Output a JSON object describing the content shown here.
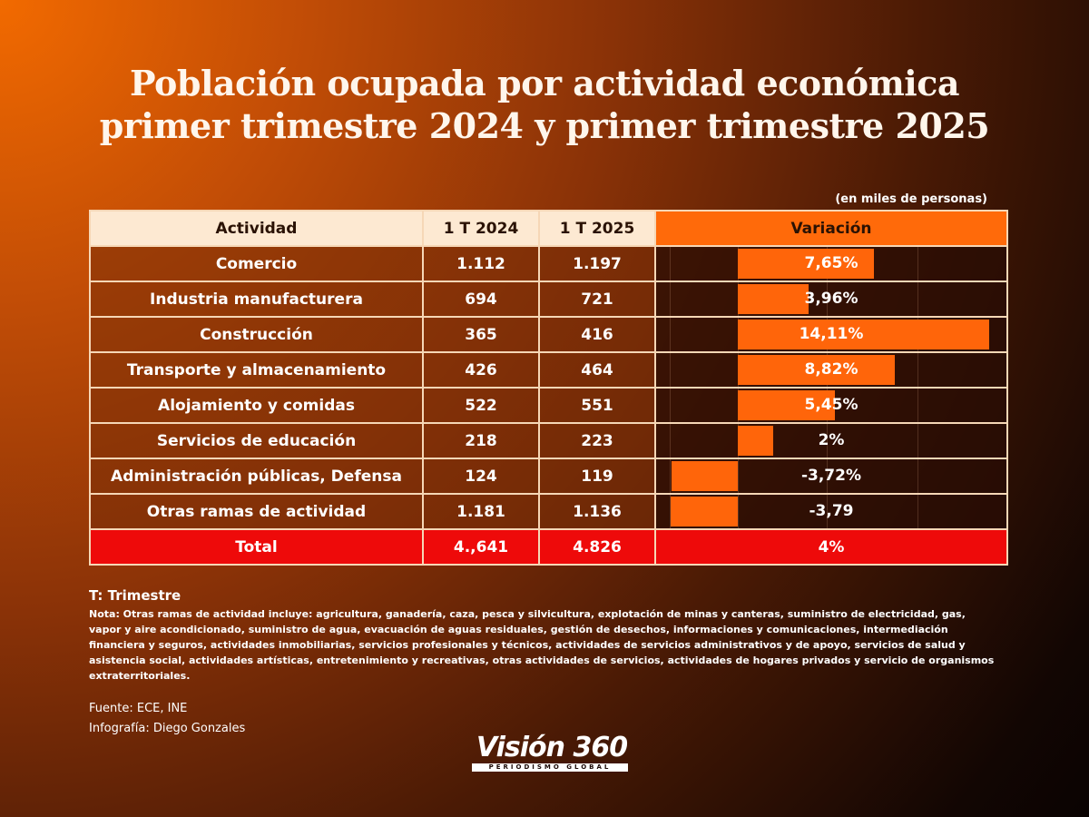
{
  "title_line1": "Población ocupada  por actividad económica",
  "title_line2": "primer trimestre 2024 y primer trimestre 2025",
  "units_note": "(en miles de personas)",
  "headers": {
    "activity": "Actividad",
    "t2024": "1 T 2024",
    "t2025": "1 T 2025",
    "variation": "Variación"
  },
  "chart_data": {
    "type": "table",
    "columns": [
      "Actividad",
      "1 T 2024",
      "1 T 2025",
      "Variación"
    ],
    "rows": [
      {
        "actividad": "Comercio",
        "t2024": "1.112",
        "t2025": "1.197",
        "variacion": "7,65%",
        "value": 7.65
      },
      {
        "actividad": "Industria manufacturera",
        "t2024": "694",
        "t2025": "721",
        "variacion": "3,96%",
        "value": 3.96
      },
      {
        "actividad": "Construcción",
        "t2024": "365",
        "t2025": "416",
        "variacion": "14,11%",
        "value": 14.11
      },
      {
        "actividad": "Transporte y almacenamiento",
        "t2024": "426",
        "t2025": "464",
        "variacion": "8,82%",
        "value": 8.82
      },
      {
        "actividad": "Alojamiento y comidas",
        "t2024": "522",
        "t2025": "551",
        "variacion": "5,45%",
        "value": 5.45
      },
      {
        "actividad": "Servicios de educación",
        "t2024": "218",
        "t2025": "223",
        "variacion": "2%",
        "value": 2
      },
      {
        "actividad": "Administración públicas, Defensa",
        "t2024": "124",
        "t2025": "119",
        "variacion": "-3,72%",
        "value": -3.72
      },
      {
        "actividad": "Otras ramas de actividad",
        "t2024": "1.181",
        "t2025": "1.136",
        "variacion": "-3,79",
        "value": -3.79
      }
    ],
    "total": {
      "actividad": "Total",
      "t2024": "4.,641",
      "t2025": "4.826",
      "variacion": "4%"
    },
    "bar_range": [
      -3.79,
      14.11
    ],
    "colors": {
      "bar": "#ff650a",
      "total_row": "#ee0a0a",
      "header": "#fde9d2",
      "variation_header": "#ff6a0a"
    }
  },
  "footer": {
    "t_definition": "T: Trimestre",
    "nota": "Nota:  Otras ramas de actividad incluye: agricultura, ganadería, caza, pesca y silvicultura, explotación de minas y canteras, suministro de electricidad, gas, vapor y aire acondicionado, suministro de agua, evacuación de aguas residuales, gestión de desechos, informaciones y comunicaciones, intermediación financiera y seguros, actividades inmobiliarias, servicios profesionales y técnicos, actividades de servicios administrativos y de apoyo, servicios de salud y asistencia social, actividades artísticas, entretenimiento y recreativas, otras actividades de servicios, actividades de hogares privados y servicio de organismos extraterritoriales.",
    "source": "Fuente: ECE,  INE",
    "credit": "Infografía: Diego Gonzales"
  },
  "logo": {
    "name": "Visión 360",
    "tagline": "PERIODISMO GLOBAL"
  }
}
